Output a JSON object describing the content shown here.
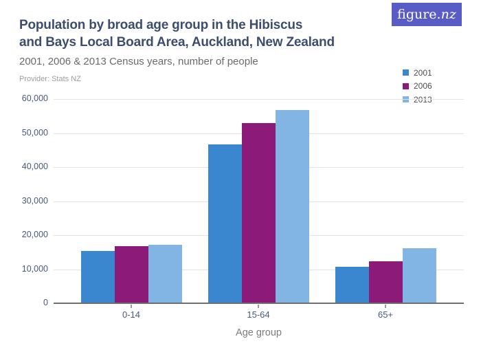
{
  "logo": {
    "text_main": "figure.",
    "text_suffix": "nz"
  },
  "header": {
    "title_line1": "Population by broad age group in the Hibiscus",
    "title_line2": "and Bays Local Board Area, Auckland, New Zealand",
    "subtitle": "2001, 2006 & 2013 Census years, number of people",
    "provider": "Provider: Stats NZ"
  },
  "colors": {
    "title": "#3c4d6d",
    "series_2001": "#3a87d0",
    "series_2006": "#8c1a78",
    "series_2013": "#82b5e3",
    "logo_background": "#5a5cc5",
    "gridline": "#e3e3e3",
    "axis_line": "#6f6f6f",
    "tick_label": "#47597e"
  },
  "chart_data": {
    "type": "bar",
    "title": "Population by broad age group in the Hibiscus and Bays Local Board Area, Auckland, New Zealand",
    "subtitle": "2001, 2006 & 2013 Census years, number of people",
    "categories": [
      "0-14",
      "15-64",
      "65+"
    ],
    "series": [
      {
        "name": "2001",
        "color": "#3a87d0",
        "values": [
          15300,
          46600,
          10800
        ]
      },
      {
        "name": "2006",
        "color": "#8c1a78",
        "values": [
          16800,
          53000,
          12300
        ]
      },
      {
        "name": "2013",
        "color": "#82b5e3",
        "values": [
          17100,
          56800,
          16200
        ]
      }
    ],
    "xlabel": "Age group",
    "ylabel": "",
    "ylim": [
      0,
      60000
    ],
    "grid": true,
    "legend_position": "top-right",
    "y_ticks": [
      {
        "value": 0,
        "label": "0"
      },
      {
        "value": 10000,
        "label": "10,000"
      },
      {
        "value": 20000,
        "label": "20,000"
      },
      {
        "value": 30000,
        "label": "30,000"
      },
      {
        "value": 40000,
        "label": "40,000"
      },
      {
        "value": 50000,
        "label": "50,000"
      },
      {
        "value": 60000,
        "label": "60,000"
      }
    ]
  }
}
